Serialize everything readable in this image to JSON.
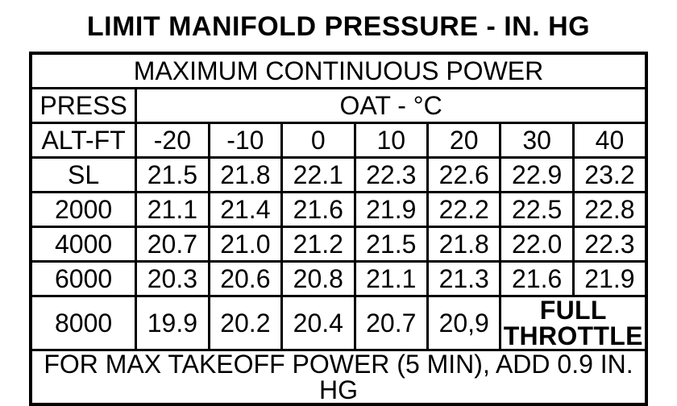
{
  "title": "LIMIT MANIFOLD PRESSURE - IN. HG",
  "subtitle": "MAXIMUM CONTINUOUS POWER",
  "header": {
    "press_line1": "PRESS",
    "press_line2": "ALT-FT",
    "oat_label": "OAT - °C",
    "temps": [
      "-20",
      "-10",
      "0",
      "10",
      "20",
      "30",
      "40"
    ]
  },
  "rows": [
    {
      "alt": "SL",
      "values": [
        "21.5",
        "21.8",
        "22.1",
        "22.3",
        "22.6",
        "22.9",
        "23.2"
      ]
    },
    {
      "alt": "2000",
      "values": [
        "21.1",
        "21.4",
        "21.6",
        "21.9",
        "22.2",
        "22.5",
        "22.8"
      ]
    },
    {
      "alt": "4000",
      "values": [
        "20.7",
        "21.0",
        "21.2",
        "21.5",
        "21.8",
        "22.0",
        "22.3"
      ]
    },
    {
      "alt": "6000",
      "values": [
        "20.3",
        "20.6",
        "20.8",
        "21.1",
        "21.3",
        "21.6",
        "21.9"
      ]
    },
    {
      "alt": "8000",
      "values": [
        "19.9",
        "20.2",
        "20.4",
        "20.7",
        "20,9"
      ],
      "full_throttle": "FULL THROTTLE"
    }
  ],
  "footer": "FOR MAX TAKEOFF POWER (5 MIN), ADD 0.9 IN. HG"
}
